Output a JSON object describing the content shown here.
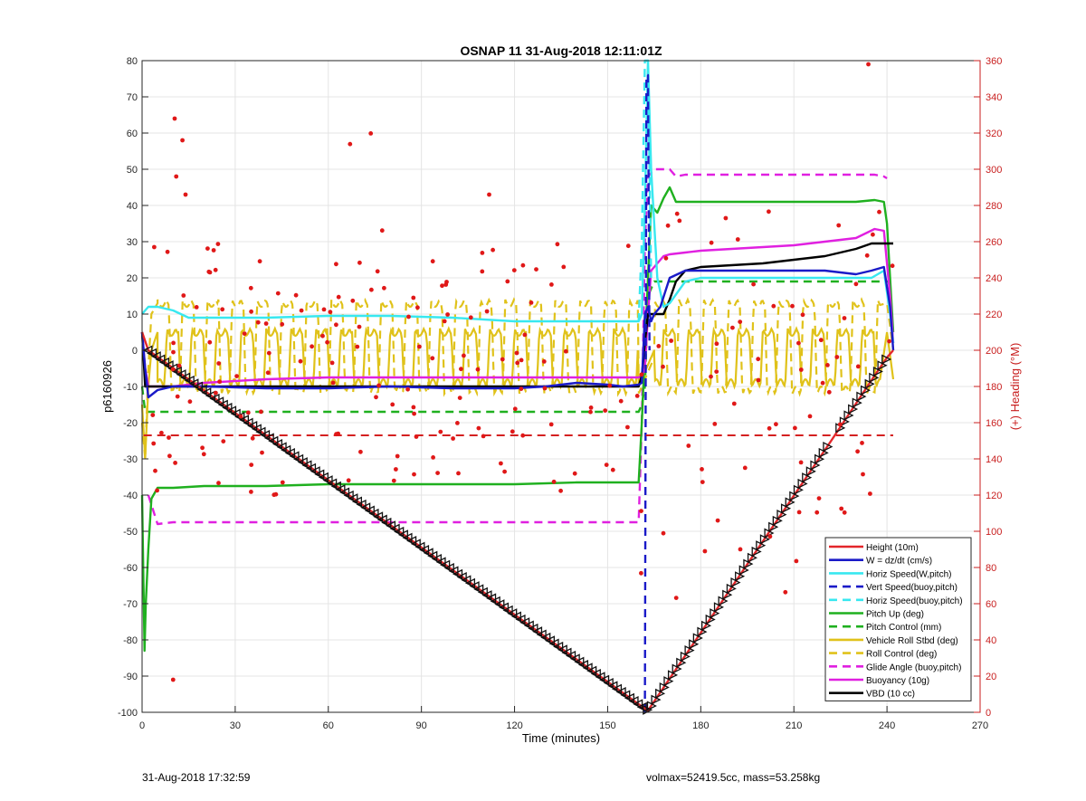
{
  "footer": {
    "timestamp": "31-Aug-2018 17:32:59",
    "stats": "volmax=52419.5cc, mass=53.258kg"
  },
  "chart_data": {
    "type": "line",
    "title": "OSNAP 11 31-Aug-2018 12:11:01Z",
    "xlabel": "Time (minutes)",
    "ylabel": "p6160926",
    "y2label": "(+) Heading (°M)",
    "xlim": [
      0,
      270
    ],
    "ylim": [
      -100,
      80
    ],
    "y2lim": [
      0,
      360
    ],
    "xticks": [
      0,
      30,
      60,
      90,
      120,
      150,
      180,
      210,
      240,
      270
    ],
    "yticks": [
      -100,
      -90,
      -80,
      -70,
      -60,
      -50,
      -40,
      -30,
      -20,
      -10,
      0,
      10,
      20,
      30,
      40,
      50,
      60,
      70,
      80
    ],
    "y2ticks": [
      0,
      20,
      40,
      60,
      80,
      100,
      120,
      140,
      160,
      180,
      200,
      220,
      240,
      260,
      280,
      300,
      320,
      340,
      360
    ],
    "grid": true,
    "legend_position": "bottom-right",
    "series": [
      {
        "name": "Height (10m)",
        "color": "#e3262a",
        "style": "solid",
        "x": [
          0,
          2,
          162,
          163,
          222,
          236,
          240,
          242
        ],
        "y": [
          5,
          0,
          -99,
          -99.5,
          -25,
          -7,
          -2,
          0
        ]
      },
      {
        "name": "W = dz/dt (cm/s)",
        "color": "#1a1ac8",
        "style": "solid",
        "x": [
          0,
          1,
          2,
          5,
          10,
          20,
          40,
          60,
          80,
          100,
          120,
          130,
          140,
          150,
          155,
          160,
          161,
          162,
          163,
          164,
          165,
          167,
          170,
          175,
          180,
          190,
          200,
          210,
          220,
          230,
          235,
          239,
          241,
          242
        ],
        "y": [
          5,
          -5,
          -13,
          -11,
          -10,
          -10,
          -10.5,
          -10.5,
          -10,
          -10.5,
          -10.5,
          -10,
          -9,
          -9.5,
          -10,
          -9.5,
          -9,
          10,
          12,
          8,
          10,
          12,
          20,
          22,
          22,
          22,
          22,
          22,
          22,
          21,
          22,
          23,
          12,
          0
        ]
      },
      {
        "name": "Horiz Speed(W,pitch)",
        "color": "#38e8f0",
        "style": "solid",
        "x": [
          0,
          1,
          2,
          5,
          10,
          15,
          20,
          40,
          60,
          80,
          100,
          120,
          140,
          150,
          155,
          160,
          161,
          162,
          163,
          164,
          166,
          168,
          170,
          175,
          180,
          200,
          220,
          230,
          235,
          239,
          241,
          242
        ],
        "y": [
          10,
          11,
          12,
          12,
          11,
          9,
          9,
          9,
          9.5,
          9.5,
          9,
          8,
          8,
          8,
          8,
          8,
          10,
          40,
          80,
          50,
          20,
          12,
          13,
          19,
          20,
          20,
          20,
          20,
          20,
          22,
          10,
          2
        ]
      },
      {
        "name": "Vert Speed(buoy,pitch)",
        "color": "#1a1ac8",
        "style": "dash",
        "x": [
          162,
          162.5,
          163,
          163.5
        ],
        "y": [
          -100,
          76,
          76,
          0
        ]
      },
      {
        "name": "Horiz Speed(buoy,pitch)",
        "color": "#38e8f0",
        "style": "dash",
        "x": [
          160,
          161,
          162,
          163,
          164
        ],
        "y": [
          8,
          30,
          80,
          80,
          20
        ]
      },
      {
        "name": "Pitch Up (deg)",
        "color": "#1fb01f",
        "style": "solid",
        "x": [
          0,
          0.8,
          1.2,
          2,
          3,
          5,
          10,
          20,
          40,
          60,
          80,
          100,
          120,
          140,
          150,
          160,
          161,
          162,
          163,
          164,
          166,
          168,
          170,
          172,
          175,
          180,
          200,
          220,
          230,
          236,
          239,
          240,
          241,
          242
        ],
        "y": [
          -40,
          -83,
          -70,
          -55,
          -41,
          -38,
          -38,
          -37.5,
          -37.5,
          -37,
          -37,
          -37,
          -37,
          -36.5,
          -36.5,
          -36.5,
          -20,
          0,
          20,
          40,
          38,
          42,
          45,
          41,
          41,
          41,
          41,
          41,
          41,
          41.5,
          41,
          35,
          20,
          5
        ]
      },
      {
        "name": "Pitch Control (mm)",
        "color": "#1fb01f",
        "style": "dash",
        "x": [
          0,
          1,
          2,
          5,
          160,
          161,
          162,
          163,
          165,
          168,
          170,
          175,
          200,
          240,
          241
        ],
        "y": [
          -10,
          -17,
          -17,
          -17,
          -17,
          -15,
          -10,
          15,
          19,
          19,
          19,
          19,
          19,
          19,
          19
        ]
      },
      {
        "name": "Vehicle Roll Stbd (deg)",
        "color": "#e0c21a",
        "style": "solid",
        "x": [
          0,
          1,
          2,
          3,
          5,
          240,
          242
        ],
        "y": [
          -15,
          -30,
          -10,
          0,
          5,
          5,
          -8
        ]
      },
      {
        "name": "Roll Control (deg)",
        "color": "#e0c21a",
        "style": "dash",
        "x": [
          0,
          1,
          2,
          3,
          5,
          240,
          242
        ],
        "y": [
          -20,
          -30,
          -5,
          10,
          13,
          13,
          0
        ]
      },
      {
        "name": "Glide Angle (buoy,pitch)",
        "color": "#e020e0",
        "style": "dash",
        "x": [
          2,
          5,
          10,
          20,
          40,
          60,
          80,
          100,
          120,
          140,
          160,
          161,
          162,
          163,
          165,
          168,
          170,
          172,
          175,
          180,
          200,
          220,
          230,
          236,
          239,
          240
        ],
        "y": [
          -40,
          -48,
          -47.5,
          -47.5,
          -47.5,
          -47.5,
          -47.5,
          -47.5,
          -47.5,
          -47.5,
          -47.5,
          -20,
          30,
          48,
          50,
          50,
          50,
          48,
          48.5,
          48.5,
          48.5,
          48.5,
          48.5,
          48.5,
          48,
          47.5
        ]
      },
      {
        "name": "Buoyancy (10g)",
        "color": "#e020e0",
        "style": "solid",
        "x": [
          0,
          1,
          2,
          5,
          10,
          20,
          40,
          60,
          80,
          100,
          120,
          140,
          150,
          160,
          161,
          162,
          163,
          164,
          166,
          168,
          170,
          175,
          180,
          190,
          200,
          210,
          220,
          230,
          236,
          239,
          241,
          242
        ],
        "y": [
          5,
          -5,
          -10,
          -10,
          -10,
          -9,
          -8,
          -7.5,
          -7.5,
          -7.5,
          -7.5,
          -7.5,
          -7.5,
          -7.5,
          -7,
          -5,
          10,
          22,
          24,
          26,
          26.5,
          27,
          27.5,
          28,
          28.5,
          29,
          30,
          31,
          33.5,
          33,
          15,
          2
        ]
      },
      {
        "name": "VBD (10 cc)",
        "color": "#000000",
        "style": "solid",
        "x": [
          0,
          1,
          2,
          5,
          10,
          20,
          40,
          60,
          80,
          100,
          120,
          140,
          150,
          160,
          161,
          162,
          163,
          164,
          166,
          168,
          170,
          172,
          175,
          180,
          190,
          200,
          210,
          220,
          230,
          235,
          239,
          242
        ],
        "y": [
          5,
          -10,
          -10,
          -10,
          -10,
          -10,
          -10,
          -10,
          -10,
          -10,
          -10,
          -10,
          -10,
          -10,
          -7,
          2,
          10,
          10,
          10,
          10,
          14,
          19,
          22,
          23,
          23.5,
          24,
          25,
          26,
          28,
          29.5,
          29.5,
          29.5
        ]
      }
    ]
  }
}
